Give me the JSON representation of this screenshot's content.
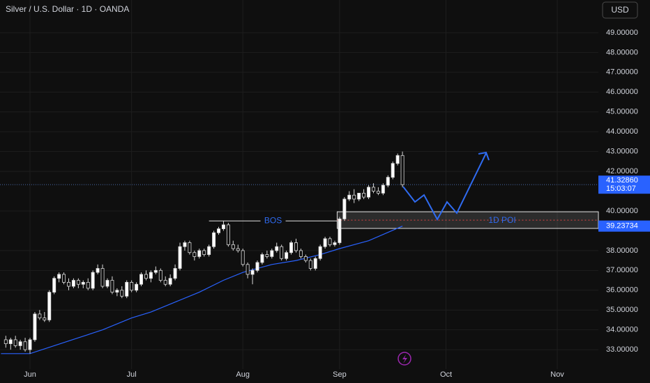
{
  "chart_data": {
    "type": "candlestick",
    "title": "Silver / U.S. Dollar · 1D · OANDA",
    "currency_button": "USD",
    "open": [
      33.5,
      33.3,
      33.5,
      33.2,
      33.4,
      33.0,
      33.5,
      34.8,
      34.6,
      34.5,
      35.9,
      36.6,
      36.8,
      36.4,
      36.2,
      36.5,
      36.3,
      36.4,
      36.1,
      36.9,
      37.1,
      36.2,
      36.5,
      35.9,
      36.0,
      35.7,
      36.4,
      36.0,
      36.3,
      36.8,
      36.6,
      36.9,
      37.0,
      36.5,
      36.3,
      36.6,
      37.1,
      38.2,
      38.4,
      37.9,
      37.7,
      38.0,
      37.8,
      38.2,
      38.9,
      39.1,
      39.3,
      38.3,
      38.1,
      38.0,
      37.3,
      36.8,
      37.0,
      37.4,
      37.8,
      37.7,
      38.0,
      38.2,
      37.6,
      37.9,
      38.4,
      38.0,
      37.7,
      37.5,
      37.1,
      37.6,
      38.2,
      38.6,
      38.3,
      38.4,
      39.6,
      40.6,
      40.8,
      40.6,
      40.9,
      40.7,
      41.2,
      41.0,
      40.9,
      41.3,
      41.7,
      42.4,
      42.8
    ],
    "high": [
      33.7,
      33.6,
      33.7,
      33.5,
      33.6,
      33.6,
      34.9,
      35.0,
      34.9,
      36.0,
      36.7,
      36.9,
      36.9,
      36.6,
      36.6,
      36.6,
      36.5,
      36.6,
      37.0,
      37.3,
      37.3,
      36.6,
      36.7,
      36.1,
      36.2,
      36.5,
      36.5,
      36.4,
      36.9,
      37.0,
      37.0,
      37.2,
      37.1,
      36.7,
      36.8,
      37.3,
      38.4,
      38.5,
      38.5,
      38.0,
      38.1,
      38.1,
      38.3,
      39.0,
      39.2,
      39.5,
      39.4,
      38.5,
      38.3,
      38.1,
      37.4,
      37.1,
      37.5,
      37.9,
      38.0,
      38.1,
      38.4,
      38.3,
      38.0,
      38.5,
      38.6,
      38.1,
      37.8,
      37.6,
      37.7,
      38.3,
      38.7,
      38.7,
      38.5,
      39.7,
      40.7,
      41.0,
      41.1,
      40.9,
      41.1,
      41.3,
      41.4,
      41.2,
      41.4,
      41.8,
      42.5,
      42.9,
      43.0
    ],
    "low": [
      33.1,
      33.0,
      33.1,
      33.0,
      32.9,
      32.8,
      33.4,
      34.5,
      34.4,
      34.4,
      35.8,
      36.4,
      36.3,
      36.0,
      36.1,
      36.1,
      36.1,
      36.0,
      36.0,
      36.8,
      36.1,
      36.1,
      35.8,
      35.7,
      35.6,
      35.6,
      35.9,
      35.9,
      36.2,
      36.5,
      36.4,
      36.8,
      36.4,
      36.2,
      36.2,
      36.5,
      37.0,
      38.0,
      37.8,
      37.5,
      37.6,
      37.7,
      37.7,
      38.1,
      38.8,
      39.0,
      38.2,
      38.0,
      37.9,
      37.2,
      36.6,
      36.3,
      36.9,
      37.3,
      37.6,
      37.6,
      37.9,
      37.5,
      37.5,
      37.8,
      37.9,
      37.6,
      37.4,
      37.0,
      37.0,
      37.5,
      38.1,
      38.2,
      38.2,
      38.3,
      39.5,
      40.5,
      40.4,
      40.5,
      40.6,
      40.6,
      40.9,
      40.8,
      40.8,
      41.2,
      41.6,
      42.3,
      41.2
    ],
    "close": [
      33.3,
      33.5,
      33.2,
      33.4,
      33.0,
      33.5,
      34.8,
      34.6,
      34.5,
      35.9,
      36.6,
      36.8,
      36.4,
      36.2,
      36.5,
      36.3,
      36.4,
      36.1,
      36.9,
      37.1,
      36.2,
      36.5,
      35.9,
      36.0,
      35.7,
      36.4,
      36.0,
      36.3,
      36.8,
      36.6,
      36.9,
      37.0,
      36.5,
      36.3,
      36.6,
      37.1,
      38.2,
      38.4,
      37.9,
      37.7,
      38.0,
      37.8,
      38.2,
      38.9,
      39.1,
      39.3,
      38.3,
      38.1,
      38.0,
      37.3,
      36.8,
      37.0,
      37.4,
      37.8,
      37.7,
      38.0,
      38.2,
      37.6,
      37.9,
      38.4,
      38.0,
      37.7,
      37.5,
      37.1,
      37.6,
      38.2,
      38.6,
      38.3,
      38.4,
      39.6,
      40.6,
      40.8,
      40.6,
      40.9,
      40.7,
      41.2,
      41.0,
      40.9,
      41.3,
      41.7,
      42.4,
      42.8,
      41.3286
    ],
    "moving_average": {
      "color": "#2962ff",
      "x": [
        -1,
        5,
        10,
        15,
        20,
        26,
        30,
        35,
        40,
        45,
        49,
        55,
        60,
        65,
        69,
        75,
        82
      ],
      "values": [
        32.8,
        32.8,
        33.2,
        33.6,
        34.0,
        34.6,
        34.9,
        35.4,
        35.9,
        36.5,
        36.9,
        37.3,
        37.5,
        37.8,
        38.1,
        38.5,
        39.23734
      ],
      "value_labels": [
        null,
        null,
        null,
        null,
        null,
        null,
        null,
        null,
        null,
        null,
        null,
        null,
        null,
        null,
        null,
        null,
        "39.23734"
      ]
    },
    "last_price": {
      "value": 41.3286,
      "label": "41.32860",
      "countdown": "15:03:07"
    },
    "annotations": {
      "bos": {
        "label": "BOS",
        "price": 39.5,
        "x_start": 42,
        "x_end": 68.5
      },
      "zone": {
        "label": "1D POI",
        "top": 39.96,
        "bottom": 39.12,
        "x_start": 68.5
      }
    },
    "xlim": [
      -1.2,
      122.5
    ],
    "xticks": [
      {
        "value": 5,
        "label": "Jun"
      },
      {
        "value": 26,
        "label": "Jul"
      },
      {
        "value": 49,
        "label": "Aug"
      },
      {
        "value": 69,
        "label": "Sep"
      },
      {
        "value": 91,
        "label": "Oct"
      },
      {
        "value": 114,
        "label": "Nov"
      }
    ],
    "ylim": [
      32.02,
      50.65
    ],
    "yticks": [
      {
        "value": 33,
        "label": "33.00000"
      },
      {
        "value": 34,
        "label": "34.00000"
      },
      {
        "value": 35,
        "label": "35.00000"
      },
      {
        "value": 36,
        "label": "36.00000"
      },
      {
        "value": 37,
        "label": "37.00000"
      },
      {
        "value": 38,
        "label": "38.00000"
      },
      {
        "value": 40,
        "label": "40.00000"
      },
      {
        "value": 42,
        "label": "42.00000"
      },
      {
        "value": 43,
        "label": "43.00000"
      },
      {
        "value": 44,
        "label": "44.00000"
      },
      {
        "value": 45,
        "label": "45.00000"
      },
      {
        "value": 46,
        "label": "46.00000"
      },
      {
        "value": 47,
        "label": "47.00000"
      },
      {
        "value": 48,
        "label": "48.00000"
      },
      {
        "value": 49,
        "label": "49.00000"
      }
    ],
    "grid": true,
    "up_color": "#ffffff",
    "down_color": "#0f0f0f",
    "wick_color": "#d8d8d8"
  }
}
